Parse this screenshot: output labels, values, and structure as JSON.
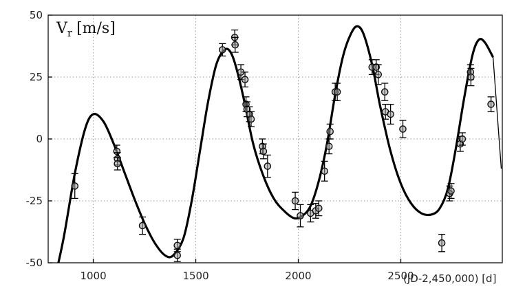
{
  "chart_data": {
    "type": "scatter",
    "ylabel": "V",
    "ylabel_sub": "r",
    "ylabel_unit": "[m/s]",
    "xlabel": "(JD-2,450,000) [d]",
    "xlim": [
      780,
      2995
    ],
    "ylim": [
      -50,
      50
    ],
    "xticks": [
      1000,
      1500,
      2000,
      2500
    ],
    "yticks": [
      50,
      25,
      0,
      -25,
      -50
    ],
    "grid": true,
    "fit_curve": {
      "x": [
        830,
        860,
        910,
        960,
        1000,
        1050,
        1100,
        1150,
        1200,
        1250,
        1300,
        1350,
        1390,
        1440,
        1480,
        1520,
        1560,
        1600,
        1640,
        1670,
        1700,
        1740,
        1780,
        1830,
        1880,
        1930,
        1980,
        2020,
        2060,
        2100,
        2140,
        2180,
        2220,
        2260,
        2290,
        2320,
        2360,
        2400,
        2450,
        2500,
        2550,
        2600,
        2650,
        2690,
        2730,
        2770,
        2810,
        2850,
        2880,
        2910,
        2950
      ],
      "y": [
        -50,
        -38,
        -14,
        4,
        10,
        7,
        -2,
        -13,
        -24,
        -34,
        -42,
        -47,
        -47,
        -40,
        -25,
        -5,
        15,
        30,
        36,
        35,
        28,
        14,
        -2,
        -15,
        -24,
        -29,
        -32,
        -31,
        -27,
        -17,
        -2,
        18,
        34,
        43,
        45.5,
        42,
        30,
        13,
        -5,
        -18,
        -26,
        -30,
        -30.5,
        -28,
        -20,
        -3,
        17,
        34,
        40,
        39,
        33
      ],
      "extension_x": [
        2950,
        2990
      ],
      "extension_y": [
        33,
        -12
      ]
    },
    "points": [
      {
        "x": 910,
        "y": -19,
        "err": 5
      },
      {
        "x": 1115,
        "y": -5,
        "err": 2.5
      },
      {
        "x": 1118,
        "y": -8,
        "err": 2.5
      },
      {
        "x": 1118,
        "y": -10,
        "err": 2.5
      },
      {
        "x": 1240,
        "y": -35,
        "err": 3.5
      },
      {
        "x": 1410,
        "y": -43,
        "err": 2.5
      },
      {
        "x": 1410,
        "y": -47,
        "err": 2.5
      },
      {
        "x": 1630,
        "y": 36,
        "err": 2.5
      },
      {
        "x": 1690,
        "y": 41,
        "err": 3
      },
      {
        "x": 1692,
        "y": 38,
        "err": 3
      },
      {
        "x": 1720,
        "y": 27,
        "err": 3
      },
      {
        "x": 1740,
        "y": 24,
        "err": 3
      },
      {
        "x": 1745,
        "y": 14,
        "err": 3
      },
      {
        "x": 1750,
        "y": 12,
        "err": 3
      },
      {
        "x": 1762,
        "y": 10,
        "err": 3
      },
      {
        "x": 1770,
        "y": 8,
        "err": 3
      },
      {
        "x": 1825,
        "y": -3,
        "err": 3
      },
      {
        "x": 1830,
        "y": -5,
        "err": 3
      },
      {
        "x": 1850,
        "y": -11,
        "err": 4.5
      },
      {
        "x": 1985,
        "y": -25,
        "err": 3.5
      },
      {
        "x": 2010,
        "y": -31,
        "err": 4.5
      },
      {
        "x": 2060,
        "y": -30,
        "err": 3.5
      },
      {
        "x": 2085,
        "y": -29,
        "err": 3
      },
      {
        "x": 2100,
        "y": -28,
        "err": 3
      },
      {
        "x": 2128,
        "y": -13,
        "err": 4
      },
      {
        "x": 2150,
        "y": -3,
        "err": 3
      },
      {
        "x": 2155,
        "y": 3,
        "err": 3
      },
      {
        "x": 2180,
        "y": 19,
        "err": 3.5
      },
      {
        "x": 2190,
        "y": 19,
        "err": 3.5
      },
      {
        "x": 2360,
        "y": 29,
        "err": 3
      },
      {
        "x": 2380,
        "y": 29,
        "err": 3
      },
      {
        "x": 2390,
        "y": 26,
        "err": 4
      },
      {
        "x": 2422,
        "y": 19,
        "err": 3.5
      },
      {
        "x": 2425,
        "y": 11,
        "err": 3
      },
      {
        "x": 2450,
        "y": 10,
        "err": 4
      },
      {
        "x": 2510,
        "y": 4,
        "err": 3.5
      },
      {
        "x": 2700,
        "y": -42,
        "err": 3.5
      },
      {
        "x": 2738,
        "y": -22,
        "err": 3
      },
      {
        "x": 2745,
        "y": -21,
        "err": 3
      },
      {
        "x": 2790,
        "y": -2,
        "err": 3
      },
      {
        "x": 2800,
        "y": 0,
        "err": 2.5
      },
      {
        "x": 2840,
        "y": 27,
        "err": 3
      },
      {
        "x": 2842,
        "y": 25,
        "err": 3.5
      },
      {
        "x": 2940,
        "y": 14,
        "err": 3
      }
    ]
  }
}
